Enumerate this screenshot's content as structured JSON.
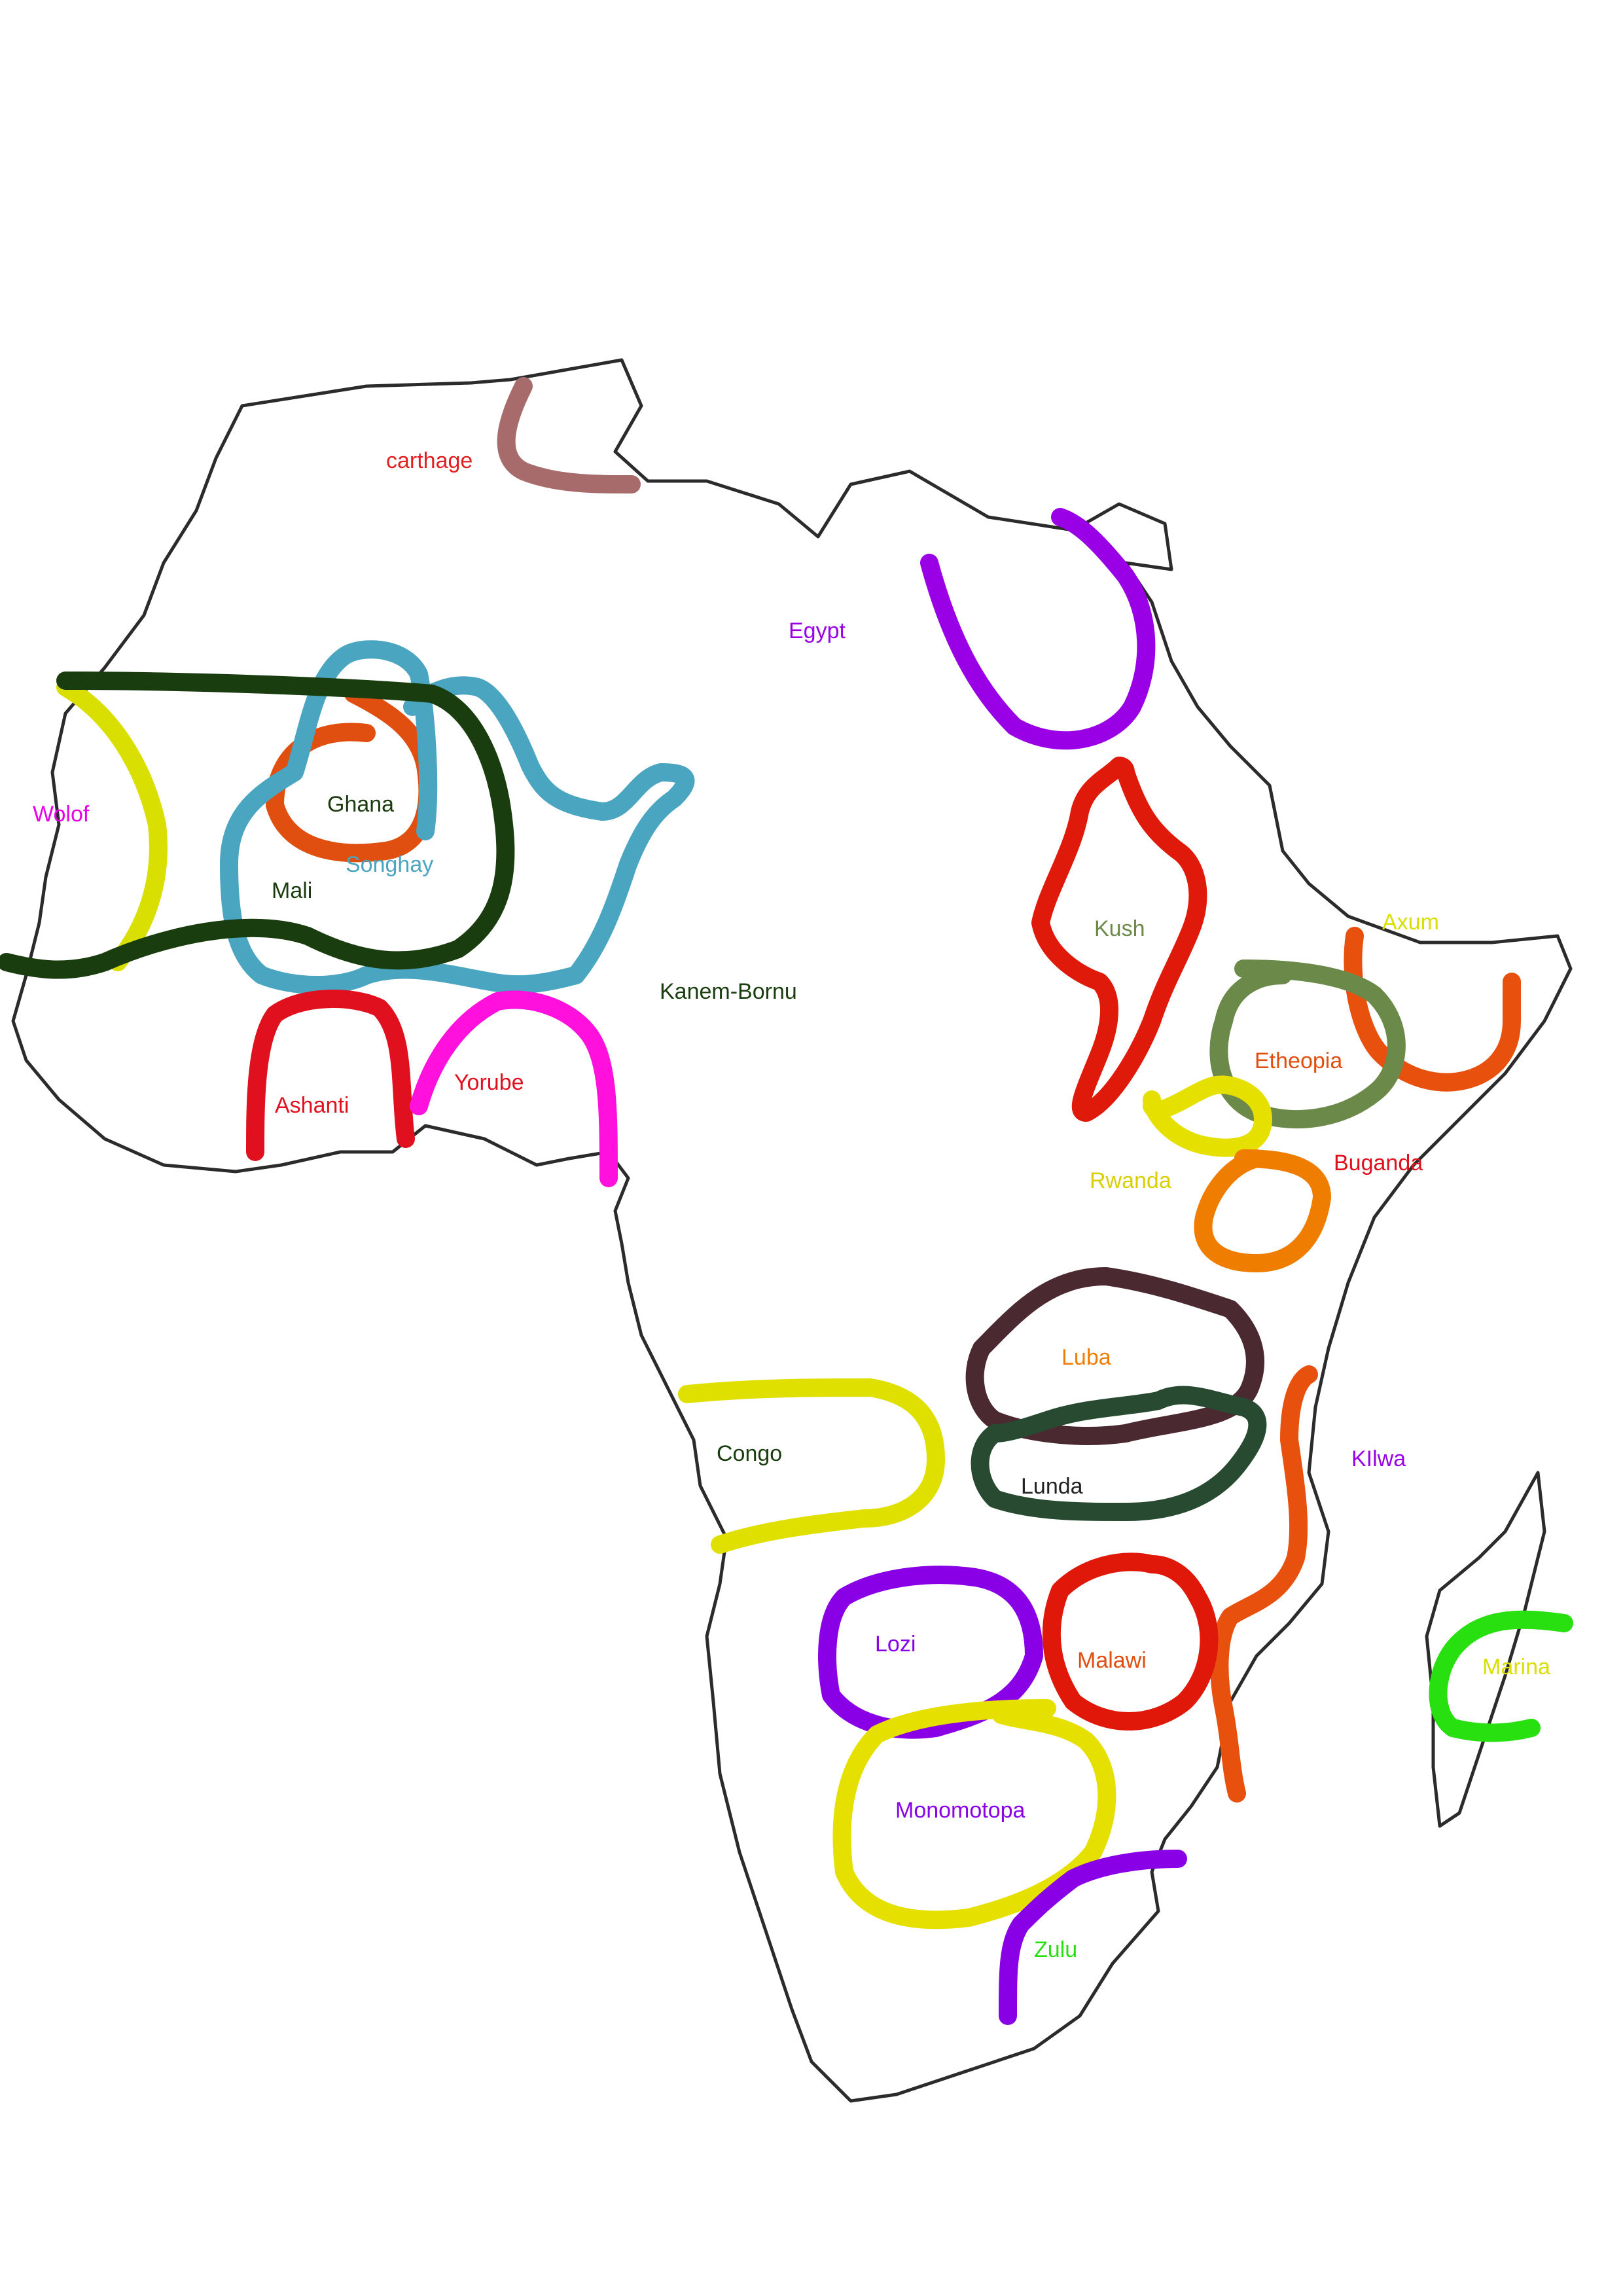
{
  "map": {
    "regions": [
      {
        "id": "carthage",
        "label": "carthage",
        "color": "#a86b6b",
        "text_color": "#e02020"
      },
      {
        "id": "egypt",
        "label": "Egypt",
        "color": "#9a00e6",
        "text_color": "#9a00e6"
      },
      {
        "id": "wolof",
        "label": "Wolof",
        "color": "#d9df00",
        "text_color": "#e600e6"
      },
      {
        "id": "ghana",
        "label": "Ghana",
        "color": "#e04f10",
        "text_color": "#1a3d10"
      },
      {
        "id": "songhay",
        "label": "Songhay",
        "color": "#4aa5c0",
        "text_color": "#4aa5c0"
      },
      {
        "id": "mali",
        "label": "Mali",
        "color": "#1a3d10",
        "text_color": "#1a3d10"
      },
      {
        "id": "kanem-bornu",
        "label": "Kanem-Bornu",
        "color": "#e05a1e",
        "text_color": "#1a3d10"
      },
      {
        "id": "kush",
        "label": "Kush",
        "color": "#e01a0a",
        "text_color": "#6b8a4a"
      },
      {
        "id": "axum",
        "label": "Axum",
        "color": "#e8500e",
        "text_color": "#d9df00"
      },
      {
        "id": "etheopia",
        "label": "Etheopia",
        "color": "#6b8a4a",
        "text_color": "#e04f10"
      },
      {
        "id": "ashanti",
        "label": "Ashanti",
        "color": "#e0101e",
        "text_color": "#e0101e"
      },
      {
        "id": "yorube",
        "label": "Yorube",
        "color": "#ff10dd",
        "text_color": "#e0101e"
      },
      {
        "id": "rwanda",
        "label": "Rwanda",
        "color": "#e6e000",
        "text_color": "#d9cf00"
      },
      {
        "id": "buganda",
        "label": "Buganda",
        "color": "#ef7e00",
        "text_color": "#e0101e"
      },
      {
        "id": "luba",
        "label": "Luba",
        "color": "#4a2a30",
        "text_color": "#ef7e00"
      },
      {
        "id": "lunda",
        "label": "Lunda",
        "color": "#274a30",
        "text_color": "#222222"
      },
      {
        "id": "congo",
        "label": "Congo",
        "color": "#dfe000",
        "text_color": "#1a3d10"
      },
      {
        "id": "kilwa",
        "label": "KIlwa",
        "color": "#e8500e",
        "text_color": "#9a00e6"
      },
      {
        "id": "lozi",
        "label": "Lozi",
        "color": "#8a00e6",
        "text_color": "#8a00e6"
      },
      {
        "id": "malawi",
        "label": "Malawi",
        "color": "#e0180a",
        "text_color": "#e04f10"
      },
      {
        "id": "marina",
        "label": "Marina",
        "color": "#28e010",
        "text_color": "#d9df00"
      },
      {
        "id": "monomotopa",
        "label": "Monomotopa",
        "color": "#e6e000",
        "text_color": "#8a00e6"
      },
      {
        "id": "zulu",
        "label": "Zulu",
        "color": "#8a00e6",
        "text_color": "#28e010"
      }
    ]
  }
}
